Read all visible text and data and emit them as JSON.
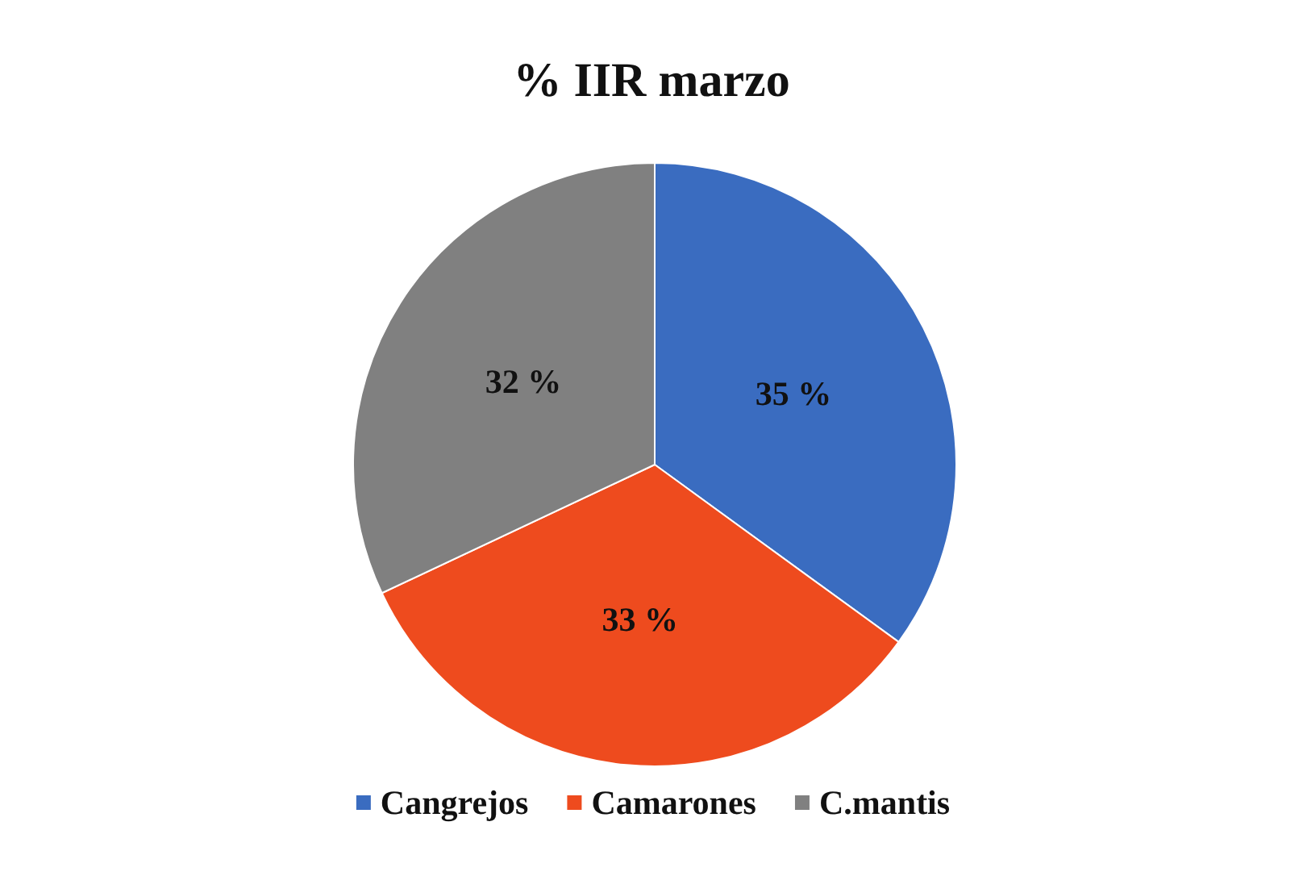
{
  "chart_data": {
    "type": "pie",
    "title": "% IIR marzo",
    "categories": [
      "Cangrejos",
      "Camarones",
      "C.mantis"
    ],
    "values": [
      35,
      33,
      32
    ],
    "colors": [
      "#3a6cc0",
      "#ee4b1e",
      "#808080"
    ],
    "value_labels": [
      "35 %",
      "33 %",
      "32 %"
    ],
    "legend": "bottom"
  }
}
